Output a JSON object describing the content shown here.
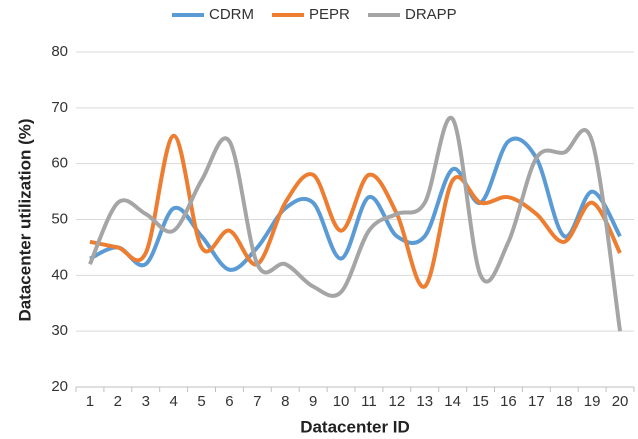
{
  "chart_data": {
    "type": "line",
    "x_label": "Datacenter ID",
    "y_label": "Datacenter utilization (%)",
    "categories": [
      "1",
      "2",
      "3",
      "4",
      "5",
      "6",
      "7",
      "8",
      "9",
      "10",
      "11",
      "12",
      "13",
      "14",
      "15",
      "16",
      "17",
      "18",
      "19",
      "20"
    ],
    "series": [
      {
        "name": "CDRM",
        "color": "#5b9bd5",
        "values": [
          43,
          45,
          42,
          52,
          47,
          41,
          45,
          52,
          53,
          43,
          54,
          47,
          47,
          59,
          53,
          64,
          61,
          47,
          55,
          47
        ]
      },
      {
        "name": "PEPR",
        "color": "#ed7d31",
        "values": [
          46,
          45,
          44,
          65,
          45,
          48,
          42,
          53,
          58,
          48,
          58,
          51,
          38,
          57,
          53,
          54,
          51,
          46,
          53,
          44
        ]
      },
      {
        "name": "DRAPP",
        "color": "#a5a5a5",
        "values": [
          42,
          53,
          51,
          48,
          57,
          64,
          42,
          42,
          38,
          37,
          48,
          51,
          53,
          68,
          40,
          46,
          61,
          62,
          64,
          30
        ]
      }
    ],
    "ylim": [
      20,
      80
    ],
    "yticks": [
      20,
      30,
      40,
      50,
      60,
      70,
      80
    ],
    "grid": true,
    "legend": "top",
    "smooth": true
  }
}
